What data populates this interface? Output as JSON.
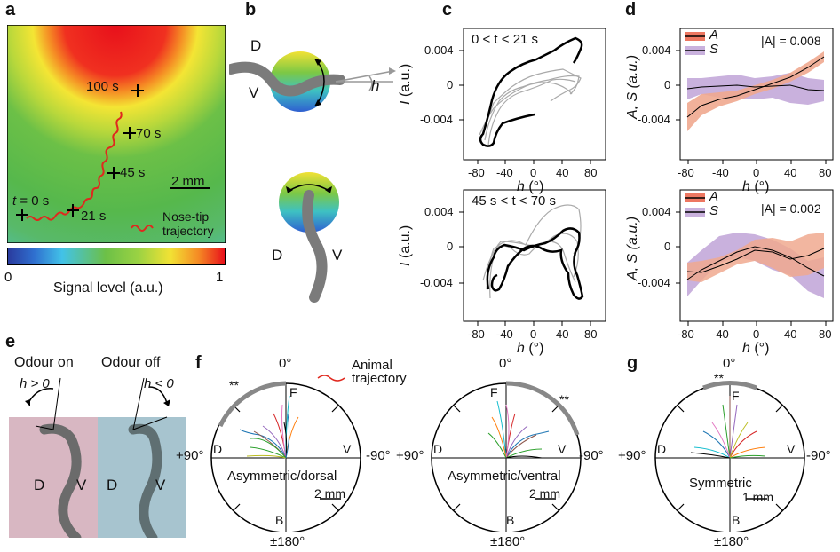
{
  "panels": {
    "a": "a",
    "b": "b",
    "c": "c",
    "d": "d",
    "e": "e",
    "f": "f",
    "g": "g"
  },
  "a": {
    "time_labels": [
      "100 s",
      "70 s",
      "45 s",
      "21 s"
    ],
    "t0_var": "t",
    "t0_rest": " = 0 s",
    "scale_bar": "2 mm",
    "legend_text": [
      "Nose-tip",
      "trajectory"
    ],
    "colorbar_min": "0",
    "colorbar_max": "1",
    "colorbar_label": "Signal level (a.u.)"
  },
  "b": {
    "top_D": "D",
    "top_V": "V",
    "h_label": "h",
    "bottom_D": "D",
    "bottom_V": "V"
  },
  "c": {
    "title_top": "0 < t < 21 s",
    "title_bottom": "45 s < t < 70 s",
    "y_label_var": "I",
    "y_label_unit": " (a.u.)",
    "x_label_var": "h",
    "x_label_unit": " (°)",
    "y_ticks": [
      "0.004",
      "0",
      "-0.004"
    ],
    "x_ticks": [
      "-80",
      "-40",
      "0",
      "40",
      "80"
    ]
  },
  "d": {
    "legend_A": "A",
    "legend_S": "S",
    "abs_top": "|A| = 0.008",
    "abs_bottom": "|A| = 0.002",
    "y_label": "A, S (a.u.)",
    "x_label_var": "h",
    "x_label_unit": " (°)",
    "y_ticks": [
      "0.004",
      "0",
      "-0.004"
    ],
    "x_ticks": [
      "-80",
      "-40",
      "0",
      "40",
      "80"
    ]
  },
  "e": {
    "odour_on": "Odour on",
    "odour_off": "Odour off",
    "h_pos": "h > 0",
    "h_neg": "h < 0",
    "D1": "D",
    "V1": "V",
    "D2": "D",
    "V2": "V"
  },
  "f": {
    "animal_traj": [
      "Animal",
      "trajectory"
    ],
    "c1_label": "Asymmetric/dorsal",
    "c1_scale": "2 mm",
    "c2_label": "Asymmetric/ventral",
    "c2_scale": "2 mm",
    "top": "0°",
    "left": "+90°",
    "right": "-90°",
    "bottom": "±180°",
    "F": "F",
    "B": "B",
    "D": "D",
    "V": "V",
    "sig": "**"
  },
  "g": {
    "label": "Symmetric",
    "scale": "1 mm",
    "top": "0°",
    "left": "+90°",
    "right": "-90°",
    "bottom": "±180°",
    "F": "F",
    "B": "B",
    "D": "D",
    "V": "V",
    "sig": "**"
  },
  "colors": {
    "A": "#e8553a",
    "A_band": "#f0a98f",
    "S": "#7a57a3",
    "S_band": "#c9b1dd",
    "trajectory": "#e0281e"
  }
}
